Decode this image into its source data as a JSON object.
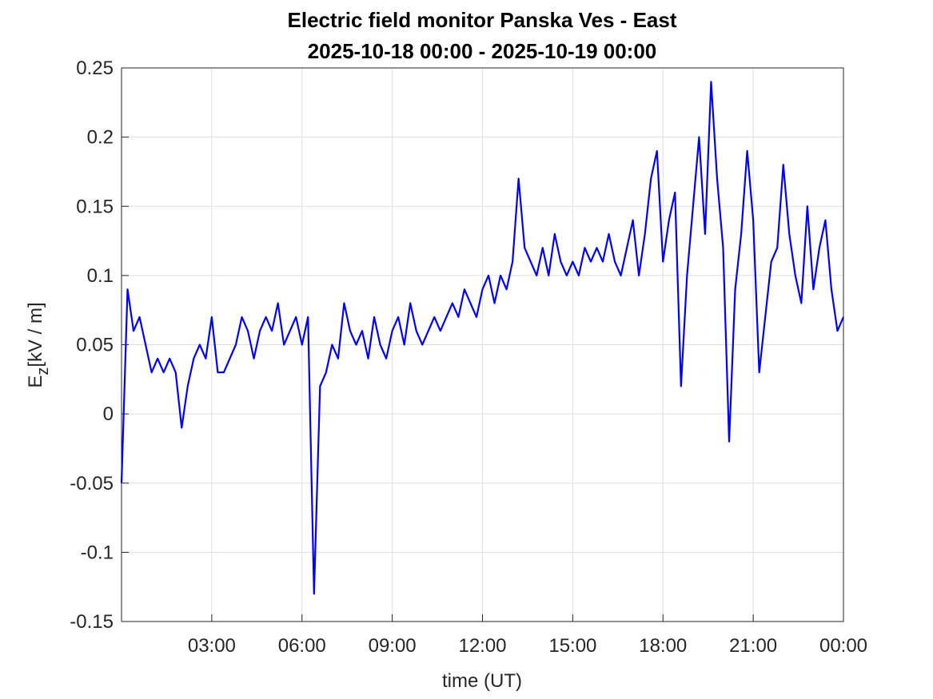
{
  "chart_data": {
    "type": "line",
    "title": [
      "Electric field monitor Panska Ves - East",
      "2025-10-18 00:00 - 2025-10-19 00:00"
    ],
    "xlabel": "time (UT)",
    "ylabel": {
      "symbol": "E",
      "subscript": "z",
      "unit": "[kV / m]"
    },
    "grid": true,
    "xlim": [
      0,
      24
    ],
    "xticks": [
      {
        "value": 3,
        "label": "03:00"
      },
      {
        "value": 6,
        "label": "06:00"
      },
      {
        "value": 9,
        "label": "09:00"
      },
      {
        "value": 12,
        "label": "12:00"
      },
      {
        "value": 15,
        "label": "15:00"
      },
      {
        "value": 18,
        "label": "18:00"
      },
      {
        "value": 21,
        "label": "21:00"
      },
      {
        "value": 24,
        "label": "00:00"
      }
    ],
    "ylim": [
      -0.15,
      0.25
    ],
    "yticks": [
      -0.15,
      -0.1,
      -0.05,
      0,
      0.05,
      0.1,
      0.15,
      0.2,
      0.25
    ],
    "x": [
      0,
      0.2,
      0.4,
      0.6,
      0.8,
      1,
      1.2,
      1.4,
      1.6,
      1.8,
      2,
      2.2,
      2.4,
      2.6,
      2.8,
      3,
      3.2,
      3.4,
      3.6,
      3.8,
      4,
      4.2,
      4.4,
      4.6,
      4.8,
      5,
      5.2,
      5.4,
      5.6,
      5.8,
      6,
      6.2,
      6.4,
      6.6,
      6.8,
      7,
      7.2,
      7.4,
      7.6,
      7.8,
      8,
      8.2,
      8.4,
      8.6,
      8.8,
      9,
      9.2,
      9.4,
      9.6,
      9.8,
      10,
      10.2,
      10.4,
      10.6,
      10.8,
      11,
      11.2,
      11.4,
      11.6,
      11.8,
      12,
      12.2,
      12.4,
      12.6,
      12.8,
      13,
      13.2,
      13.4,
      13.6,
      13.8,
      14,
      14.2,
      14.4,
      14.6,
      14.8,
      15,
      15.2,
      15.4,
      15.6,
      15.8,
      16,
      16.2,
      16.4,
      16.6,
      16.8,
      17,
      17.2,
      17.4,
      17.6,
      17.8,
      18,
      18.2,
      18.4,
      18.6,
      18.8,
      19,
      19.2,
      19.4,
      19.6,
      19.8,
      20,
      20.2,
      20.4,
      20.6,
      20.8,
      21,
      21.2,
      21.4,
      21.6,
      21.8,
      22,
      22.2,
      22.4,
      22.6,
      22.8,
      23,
      23.2,
      23.4,
      23.6,
      23.8,
      24
    ],
    "series": [
      {
        "color": "#0000ff",
        "values": [
          -0.05,
          0.09,
          0.06,
          0.07,
          0.05,
          0.03,
          0.04,
          0.03,
          0.04,
          0.03,
          -0.01,
          0.02,
          0.04,
          0.05,
          0.04,
          0.07,
          0.03,
          0.03,
          0.04,
          0.05,
          0.07,
          0.06,
          0.04,
          0.06,
          0.07,
          0.06,
          0.08,
          0.05,
          0.06,
          0.07,
          0.05,
          0.07,
          -0.13,
          0.02,
          0.03,
          0.05,
          0.04,
          0.08,
          0.06,
          0.05,
          0.06,
          0.04,
          0.07,
          0.05,
          0.04,
          0.06,
          0.07,
          0.05,
          0.08,
          0.06,
          0.05,
          0.06,
          0.07,
          0.06,
          0.07,
          0.08,
          0.07,
          0.09,
          0.08,
          0.07,
          0.09,
          0.1,
          0.08,
          0.1,
          0.09,
          0.11,
          0.17,
          0.12,
          0.11,
          0.1,
          0.12,
          0.1,
          0.13,
          0.11,
          0.1,
          0.11,
          0.1,
          0.12,
          0.11,
          0.12,
          0.11,
          0.13,
          0.11,
          0.1,
          0.12,
          0.14,
          0.1,
          0.13,
          0.17,
          0.19,
          0.11,
          0.14,
          0.16,
          0.02,
          0.1,
          0.15,
          0.2,
          0.13,
          0.24,
          0.17,
          0.12,
          -0.02,
          0.09,
          0.13,
          0.19,
          0.14,
          0.03,
          0.07,
          0.11,
          0.12,
          0.18,
          0.13,
          0.1,
          0.08,
          0.15,
          0.09,
          0.12,
          0.14,
          0.09,
          0.06,
          0.07
        ]
      }
    ]
  }
}
